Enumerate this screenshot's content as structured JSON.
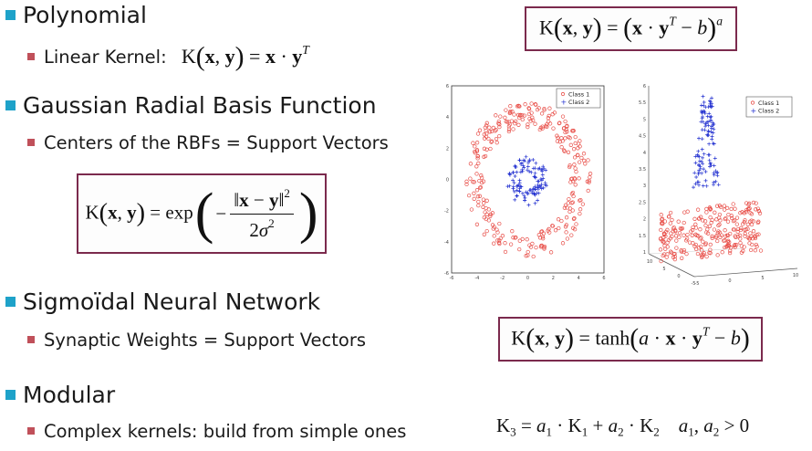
{
  "bullets": {
    "polynomial": "Polynomial",
    "linear_kernel": "Linear Kernel:",
    "gaussian": "Gaussian Radial Basis Function",
    "rbf_centers": "Centers of the RBFs = Support Vectors",
    "sigmoidal": "Sigmoïdal Neural Network",
    "synaptic": "Synaptic Weights = Support Vectors",
    "modular": "Modular",
    "complex": "Complex kernels: build from simple ones"
  },
  "colors": {
    "bullet_primary": "#1ea2c9",
    "bullet_secondary": "#c0505a",
    "formula_border": "#7b2a4d",
    "class1": "#e8504a",
    "class2": "#2230d0"
  },
  "plot2d": {
    "x_ticks": [
      "-6",
      "-4",
      "-2",
      "0",
      "2",
      "4",
      "6"
    ],
    "y_ticks": [
      "-6",
      "-4",
      "-2",
      "0",
      "2",
      "4",
      "6"
    ],
    "legend": [
      "Class 1",
      "Class 2"
    ]
  },
  "plot3d": {
    "z_ticks": [
      "6",
      "5.5",
      "5",
      "4.5",
      "4",
      "3.5",
      "3",
      "2.5",
      "2",
      "1.5",
      "1"
    ],
    "x_ticks": [
      "10",
      "5",
      "0",
      "-5"
    ],
    "y_ticks": [
      "-5",
      "0",
      "5",
      "10"
    ],
    "legend": [
      "Class 1",
      "Class 2"
    ]
  }
}
